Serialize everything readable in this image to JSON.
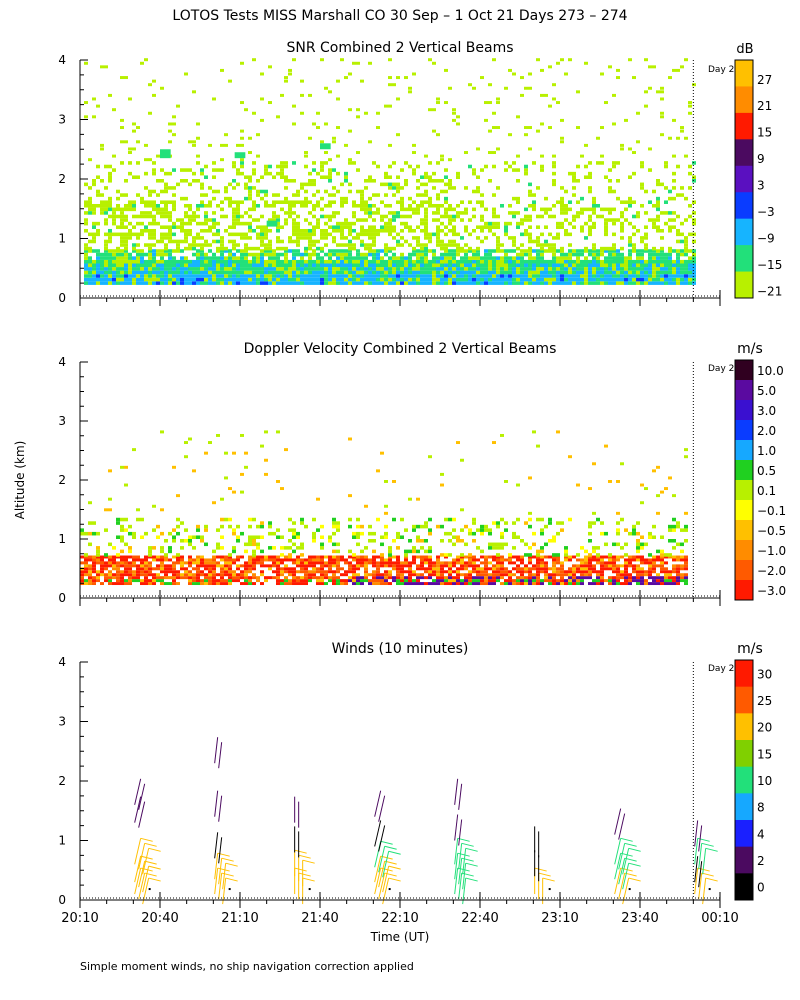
{
  "figure": {
    "title": "LOTOS Tests MISS Marshall CO  30 Sep –  1 Oct 21 Days 273 – 274",
    "ylabel": "Altitude (km)",
    "xlabel": "Time (UT)",
    "footnote": "Simple moment winds, no ship navigation correction applied",
    "day_marker": "Day 2"
  },
  "chart_data": [
    {
      "type": "heatmap",
      "title": "SNR Combined 2 Vertical Beams",
      "units": "dB",
      "ylabel": "Altitude (km)",
      "y_ticks": [
        "0",
        "1",
        "2",
        "3",
        "4"
      ],
      "ylim": [
        0,
        4
      ],
      "colorbar_labels": [
        "27",
        "21",
        "15",
        "9",
        "3",
        "−3",
        "−9",
        "−15",
        "−21"
      ],
      "colorbar_colors": [
        "#ffc000",
        "#ff8c00",
        "#ff1a00",
        "#4b0a60",
        "#5a10c0",
        "#0a3cff",
        "#16b4ff",
        "#22e07a",
        "#b8f000"
      ],
      "features": [
        {
          "kind": "band",
          "alt": [
            0.22,
            0.75
          ],
          "dominant": "-15 to -21 dB",
          "color": "#22e07a"
        },
        {
          "kind": "patches",
          "alt": [
            0.8,
            2.2
          ],
          "dominant": "-21 dB",
          "color": "#b8f000"
        },
        {
          "kind": "sparse",
          "alt": [
            2.2,
            4.0
          ],
          "dominant": "-21 dB",
          "color": "#b8f000"
        }
      ]
    },
    {
      "type": "heatmap",
      "title": "Doppler Velocity Combined 2 Vertical Beams",
      "units": "m/s",
      "ylabel": "Altitude (km)",
      "y_ticks": [
        "0",
        "1",
        "2",
        "3",
        "4"
      ],
      "ylim": [
        0,
        4
      ],
      "colorbar_labels": [
        "10.0",
        "5.0",
        "3.0",
        "2.0",
        "1.0",
        "0.5",
        "0.1",
        "−0.1",
        "−0.5",
        "−1.0",
        "−2.0",
        "−3.0"
      ],
      "colorbar_colors": [
        "#300020",
        "#5a0aa0",
        "#3a10d0",
        "#0a3cff",
        "#16a8ff",
        "#20d020",
        "#b8f000",
        "#ffff00",
        "#ffc000",
        "#ff8c00",
        "#ff5a00",
        "#ff1a00"
      ],
      "features": [
        {
          "kind": "band",
          "alt": [
            0.2,
            0.7
          ],
          "dominant": "-1.0 to -3.0 m/s",
          "color": "#ff5a00"
        },
        {
          "kind": "patches",
          "alt": [
            0.7,
            1.3
          ],
          "dominant": "-0.1 to 0.1 m/s",
          "color": "#b8f000"
        },
        {
          "kind": "sparse",
          "alt": [
            1.3,
            2.8
          ],
          "dominant": "-0.5 m/s",
          "color": "#ffc000"
        }
      ]
    },
    {
      "type": "wind-barbs",
      "title": "Winds (10 minutes)",
      "units": "m/s",
      "ylabel": "Altitude (km)",
      "y_ticks": [
        "0",
        "1",
        "2",
        "3",
        "4"
      ],
      "ylim": [
        0,
        4
      ],
      "colorbar_labels": [
        "30",
        "25",
        "20",
        "15",
        "10",
        "8",
        "4",
        "2",
        "0"
      ],
      "colorbar_colors": [
        "#ff1a00",
        "#ff5a00",
        "#ffc000",
        "#80d000",
        "#22e07a",
        "#16a8ff",
        "#1a20ff",
        "#4b0a60",
        "#000000"
      ],
      "profile_times": [
        "20:35",
        "21:05",
        "21:35",
        "22:05",
        "22:35",
        "23:05",
        "23:35",
        "00:05"
      ],
      "profiles": [
        {
          "time": "20:35",
          "levels": [
            {
              "alt": 0.1,
              "speed": 24
            },
            {
              "alt": 0.3,
              "speed": 24
            },
            {
              "alt": 0.6,
              "speed": 20
            },
            {
              "alt": 1.3,
              "speed": 3
            },
            {
              "alt": 1.6,
              "speed": 3
            }
          ]
        },
        {
          "time": "21:05",
          "levels": [
            {
              "alt": 0.1,
              "speed": 24
            },
            {
              "alt": 0.35,
              "speed": 22
            },
            {
              "alt": 0.7,
              "speed": 1
            },
            {
              "alt": 1.4,
              "speed": 3
            },
            {
              "alt": 2.3,
              "speed": 3
            }
          ]
        },
        {
          "time": "21:35",
          "levels": [
            {
              "alt": 0.1,
              "speed": 24
            },
            {
              "alt": 0.4,
              "speed": 24
            },
            {
              "alt": 0.8,
              "speed": 1
            },
            {
              "alt": 1.3,
              "speed": 3
            }
          ]
        },
        {
          "time": "22:05",
          "levels": [
            {
              "alt": 0.1,
              "speed": 24
            },
            {
              "alt": 0.3,
              "speed": 24
            },
            {
              "alt": 0.55,
              "speed": 12
            },
            {
              "alt": 0.9,
              "speed": 1
            },
            {
              "alt": 1.4,
              "speed": 3
            }
          ]
        },
        {
          "time": "22:35",
          "levels": [
            {
              "alt": 0.1,
              "speed": 12
            },
            {
              "alt": 0.35,
              "speed": 12
            },
            {
              "alt": 0.6,
              "speed": 12
            },
            {
              "alt": 1.0,
              "speed": 3
            },
            {
              "alt": 1.6,
              "speed": 3
            }
          ]
        },
        {
          "time": "23:05",
          "levels": [
            {
              "alt": 0.1,
              "speed": 24
            },
            {
              "alt": 0.4,
              "speed": 1
            },
            {
              "alt": 0.8,
              "speed": 1
            }
          ]
        },
        {
          "time": "23:35",
          "levels": [
            {
              "alt": 0.1,
              "speed": 24
            },
            {
              "alt": 0.35,
              "speed": 12
            },
            {
              "alt": 0.6,
              "speed": 12
            },
            {
              "alt": 1.1,
              "speed": 3
            }
          ]
        },
        {
          "time": "00:05",
          "levels": [
            {
              "alt": 0.1,
              "speed": 24
            },
            {
              "alt": 0.3,
              "speed": 1
            },
            {
              "alt": 0.6,
              "speed": 12
            },
            {
              "alt": 0.9,
              "speed": 3
            }
          ]
        }
      ]
    }
  ],
  "x_axis": {
    "ticks": [
      "20:10",
      "20:40",
      "21:10",
      "21:40",
      "22:10",
      "22:40",
      "23:10",
      "23:40",
      "00:10"
    ],
    "xlim_minutes": [
      0,
      240
    ],
    "day_boundary_minute": 230
  }
}
